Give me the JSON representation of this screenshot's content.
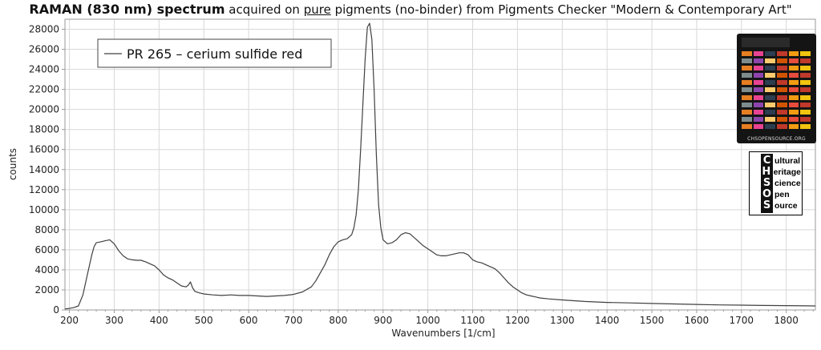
{
  "title": {
    "bold": "RAMAN (830 nm) spectrum",
    "pre": " acquired on ",
    "underlined": "pure",
    "post": " pigments (no-binder) from Pigments Checker \"Modern & Contemporary Art\""
  },
  "logo": {
    "url_text": "CHSOPENSOURCE.ORG",
    "letters": [
      "C",
      "H",
      "S",
      "O",
      "S"
    ],
    "words": [
      "ultural",
      "eritage",
      "cience",
      "pen",
      "ource"
    ]
  },
  "chart_data": {
    "type": "line",
    "title": "RAMAN (830 nm) spectrum acquired on pure pigments (no-binder) from Pigments Checker \"Modern & Contemporary Art\"",
    "xlabel": "Wavenumbers [1/cm]",
    "ylabel": "counts",
    "xlim": [
      190,
      1865
    ],
    "ylim": [
      0,
      29000
    ],
    "xticks": [
      200,
      300,
      400,
      500,
      600,
      700,
      800,
      900,
      1000,
      1100,
      1200,
      1300,
      1400,
      1500,
      1600,
      1700,
      1800
    ],
    "yticks": [
      0,
      2000,
      4000,
      6000,
      8000,
      10000,
      12000,
      14000,
      16000,
      18000,
      20000,
      22000,
      24000,
      26000,
      28000
    ],
    "grid": true,
    "legend_position": "top-left",
    "colors": {
      "line": "#404040",
      "grid": "#d8d8d8",
      "axis": "#9a9a9a"
    },
    "series": [
      {
        "name": "PR 265 – cerium sulfide red",
        "x": [
          190,
          200,
          210,
          220,
          230,
          240,
          250,
          255,
          260,
          270,
          280,
          290,
          300,
          310,
          320,
          330,
          340,
          350,
          360,
          370,
          380,
          390,
          400,
          410,
          420,
          430,
          440,
          450,
          460,
          465,
          470,
          475,
          480,
          490,
          500,
          520,
          540,
          560,
          580,
          600,
          620,
          640,
          660,
          680,
          700,
          720,
          740,
          750,
          760,
          770,
          780,
          790,
          800,
          810,
          820,
          830,
          835,
          840,
          845,
          850,
          855,
          860,
          865,
          870,
          875,
          880,
          885,
          890,
          895,
          900,
          910,
          920,
          930,
          940,
          950,
          960,
          970,
          980,
          990,
          1000,
          1010,
          1020,
          1030,
          1040,
          1050,
          1060,
          1070,
          1080,
          1090,
          1100,
          1110,
          1120,
          1130,
          1140,
          1150,
          1160,
          1170,
          1180,
          1190,
          1200,
          1210,
          1220,
          1230,
          1240,
          1250,
          1270,
          1300,
          1350,
          1400,
          1450,
          1500,
          1550,
          1600,
          1650,
          1700,
          1750,
          1800,
          1850,
          1865
        ],
        "y": [
          100,
          150,
          250,
          400,
          1500,
          3500,
          5500,
          6300,
          6700,
          6800,
          6900,
          7000,
          6600,
          5900,
          5400,
          5100,
          5000,
          4950,
          4950,
          4800,
          4600,
          4400,
          4000,
          3500,
          3200,
          3000,
          2700,
          2400,
          2300,
          2450,
          2800,
          2200,
          1850,
          1700,
          1600,
          1500,
          1450,
          1500,
          1450,
          1450,
          1400,
          1350,
          1400,
          1450,
          1550,
          1800,
          2300,
          2900,
          3700,
          4500,
          5500,
          6300,
          6800,
          7000,
          7100,
          7500,
          8200,
          9500,
          12000,
          16000,
          20500,
          25000,
          28200,
          28600,
          27000,
          22000,
          15500,
          10500,
          8200,
          7000,
          6600,
          6700,
          7000,
          7500,
          7700,
          7600,
          7200,
          6800,
          6400,
          6100,
          5800,
          5500,
          5400,
          5400,
          5500,
          5600,
          5700,
          5700,
          5500,
          5000,
          4800,
          4700,
          4500,
          4300,
          4100,
          3700,
          3200,
          2700,
          2300,
          2000,
          1700,
          1500,
          1400,
          1300,
          1200,
          1100,
          1000,
          850,
          750,
          700,
          650,
          600,
          550,
          500,
          480,
          450,
          430,
          410,
          400
        ]
      }
    ]
  }
}
